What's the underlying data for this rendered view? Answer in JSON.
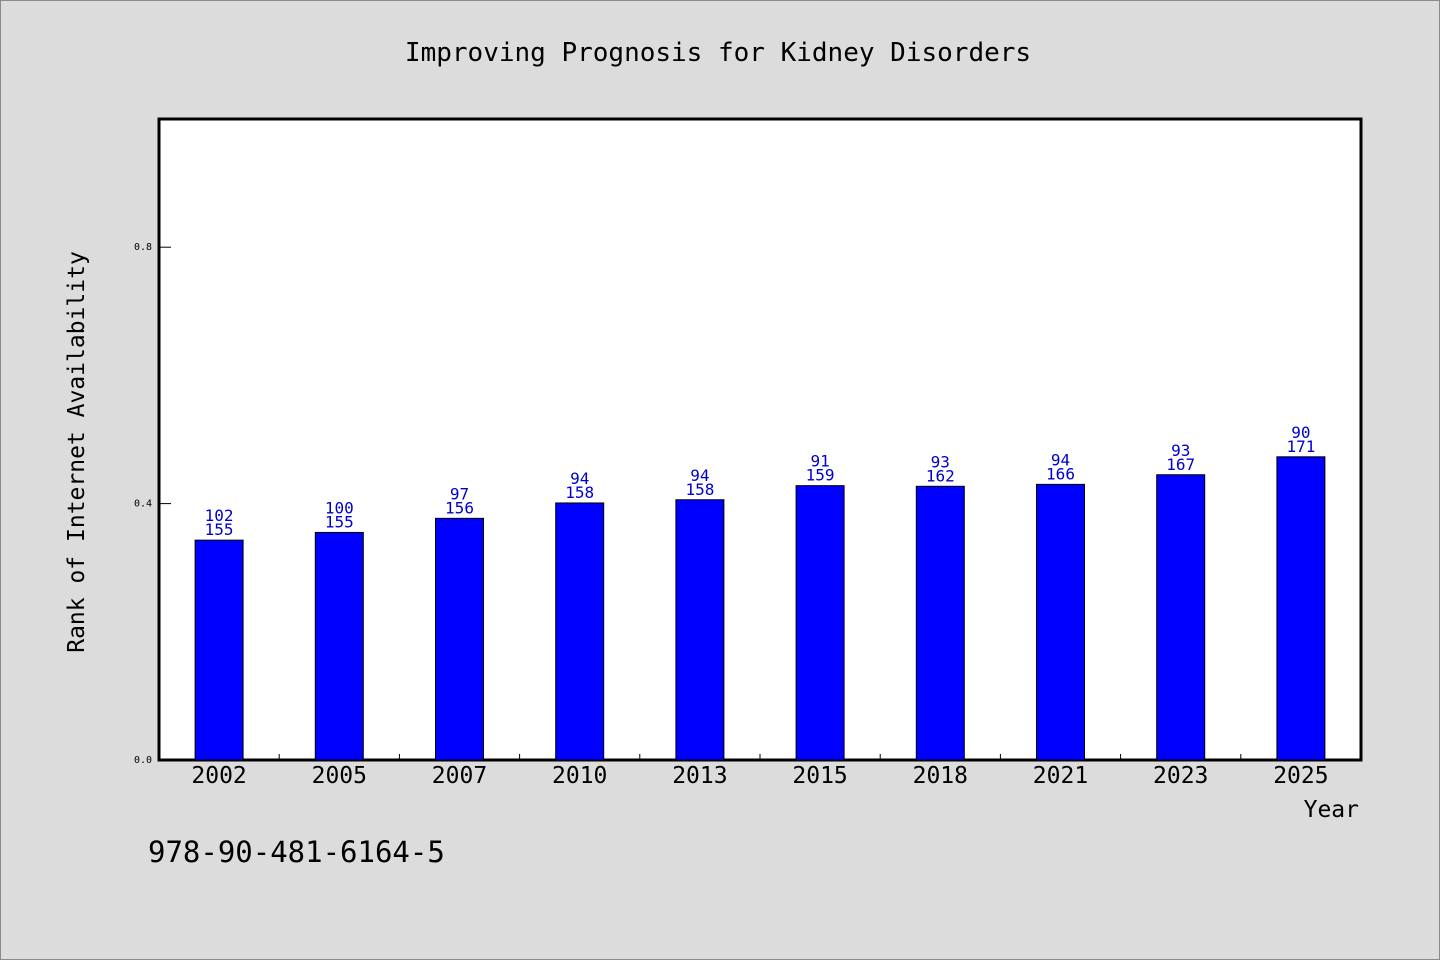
{
  "chart_data": {
    "type": "bar",
    "title": "Improving Prognosis for Kidney Disorders",
    "xlabel": "Year",
    "ylabel": "Rank of Internet Availability",
    "ylim": [
      0,
      1
    ],
    "yticks": [
      "0.0",
      "0.4",
      "0.8"
    ],
    "legend": "none",
    "grid": false,
    "categories": [
      "2002",
      "2005",
      "2007",
      "2010",
      "2013",
      "2015",
      "2018",
      "2021",
      "2023",
      "2025"
    ],
    "values": [
      0.343,
      0.355,
      0.377,
      0.401,
      0.406,
      0.428,
      0.427,
      0.43,
      0.445,
      0.473
    ],
    "labels_top": [
      "102",
      "100",
      "97",
      "94",
      "94",
      "91",
      "93",
      "94",
      "93",
      "90"
    ],
    "labels_bottom": [
      "155",
      "155",
      "156",
      "158",
      "158",
      "159",
      "162",
      "166",
      "167",
      "171"
    ],
    "bar_color": "#0000ff",
    "label_color": "#0000cc"
  },
  "footer": {
    "isbn": "978-90-481-6164-5"
  }
}
